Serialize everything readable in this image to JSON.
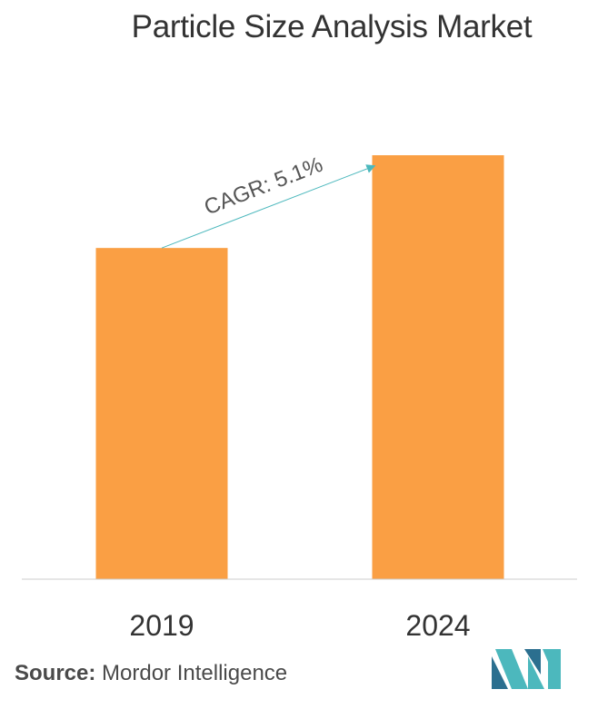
{
  "chart_data": {
    "type": "bar",
    "title": "Particle Size Analysis Market",
    "categories": [
      "2019",
      "2024"
    ],
    "values": [
      1.0,
      1.28
    ],
    "ylim": [
      0,
      1.28
    ],
    "grid": false,
    "legend": "none",
    "bar_color": "#fa9f44",
    "axis_color": "#cccccc",
    "annotation": {
      "label": "CAGR: 5.1%",
      "color": "#4cb8bd"
    }
  },
  "source": {
    "label": "Source:",
    "value": "Mordor Intelligence"
  },
  "logo": {
    "icon": "mordor-intelligence-logo-icon",
    "colors": [
      "#2b6f8f",
      "#4cb8bd"
    ]
  }
}
